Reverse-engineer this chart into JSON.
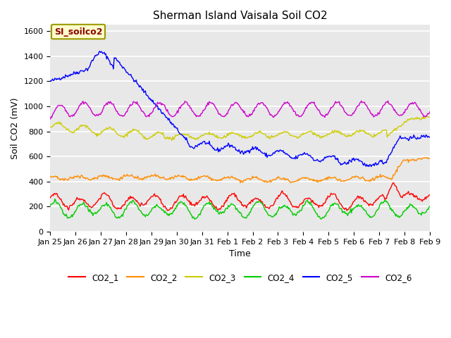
{
  "title": "Sherman Island Vaisala Soil CO2",
  "ylabel": "Soil CO2 (mV)",
  "xlabel": "Time",
  "legend_label": "SI_soilco2",
  "ylim": [
    0,
    1650
  ],
  "yticks": [
    0,
    200,
    400,
    600,
    800,
    1000,
    1200,
    1400,
    1600
  ],
  "x_tick_labels": [
    "Jan 25",
    "Jan 26",
    "Jan 27",
    "Jan 28",
    "Jan 29",
    "Jan 30",
    "Jan 31",
    "Feb 1",
    "Feb 2",
    "Feb 3",
    "Feb 4",
    "Feb 5",
    "Feb 6",
    "Feb 7",
    "Feb 8",
    "Feb 9"
  ],
  "series_colors": {
    "CO2_1": "#ff0000",
    "CO2_2": "#ff8c00",
    "CO2_3": "#cccc00",
    "CO2_4": "#00cc00",
    "CO2_5": "#0000ff",
    "CO2_6": "#cc00cc"
  },
  "fig_bg_color": "#ffffff",
  "plot_bg_color": "#e8e8e8",
  "grid_color": "#ffffff",
  "title_fontsize": 11,
  "axis_label_fontsize": 9,
  "tick_fontsize": 8,
  "n_points": 500
}
